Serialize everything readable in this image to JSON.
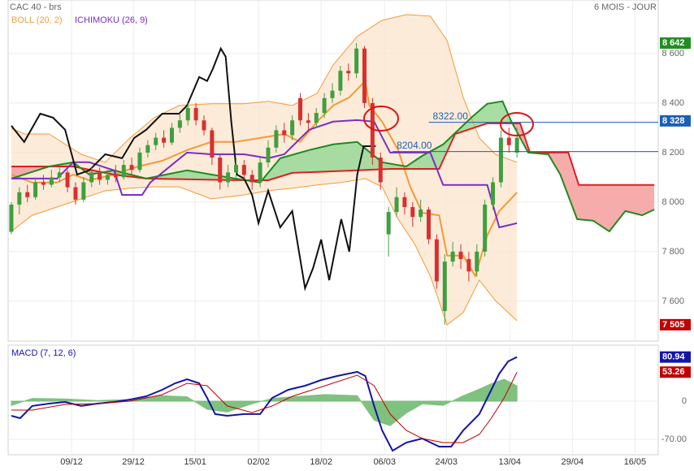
{
  "chart_data": [
    {
      "type": "candlestick",
      "title": "CAC 40 - brs",
      "subtitle": "6 MOIS - JOUR",
      "xlim": [
        -0.4,
        80.6
      ],
      "ylim": [
        7439,
        8816
      ],
      "grid": true,
      "xticks": [
        {
          "value": 7.5,
          "label": "09/12"
        },
        {
          "value": 15.2,
          "label": "29/12"
        },
        {
          "value": 22.9,
          "label": "15/01"
        },
        {
          "value": 30.8,
          "label": "02/02"
        },
        {
          "value": 38.6,
          "label": "18/02"
        },
        {
          "value": 46.5,
          "label": "06/03"
        },
        {
          "value": 54.2,
          "label": "24/03"
        },
        {
          "value": 62.1,
          "label": "13/04"
        },
        {
          "value": 69.9,
          "label": "29/04"
        },
        {
          "value": 77.7,
          "label": "16/05"
        }
      ],
      "yticks": [
        {
          "value": 7600,
          "label": "7 600"
        },
        {
          "value": 7800,
          "label": "7 800"
        },
        {
          "value": 8000,
          "label": "8 000"
        },
        {
          "value": 8200,
          "label": "8 200"
        },
        {
          "value": 8400,
          "label": "8 400"
        },
        {
          "value": 8600,
          "label": "8 600"
        }
      ],
      "up_color": "#3f9f3f",
      "down_color": "#d83030",
      "open": [
        7880,
        7990,
        8040,
        8020,
        8080,
        8070,
        8100,
        8120,
        8060,
        8010,
        8080,
        8120,
        8090,
        8110,
        8100,
        8150,
        8130,
        8200,
        8230,
        8260,
        8240,
        8300,
        8330,
        8380,
        8330,
        8290,
        8180,
        8080,
        8120,
        8150,
        8110,
        8080,
        8160,
        8220,
        8290,
        8270,
        8420,
        8330,
        8320,
        8360,
        8420,
        8450,
        8530,
        8520,
        8620,
        8400,
        8180,
        7870,
        7960,
        8020,
        7980,
        7940,
        7970,
        7850,
        7560,
        7760,
        7800,
        7770,
        7720,
        7800,
        7990,
        8080,
        8260,
        8200
      ],
      "high": [
        8000,
        8060,
        8070,
        8100,
        8110,
        8130,
        8140,
        8130,
        8080,
        8100,
        8140,
        8140,
        8130,
        8150,
        8170,
        8180,
        8220,
        8250,
        8280,
        8290,
        8320,
        8360,
        8400,
        8400,
        8350,
        8300,
        8190,
        8150,
        8180,
        8170,
        8130,
        8180,
        8250,
        8310,
        8320,
        8350,
        8440,
        8360,
        8380,
        8440,
        8480,
        8550,
        8560,
        8642,
        8630,
        8420,
        8200,
        7980,
        8060,
        8040,
        8000,
        8010,
        7980,
        7870,
        7790,
        7840,
        7830,
        7800,
        7830,
        8010,
        8100,
        8290,
        8300,
        8300
      ],
      "low": [
        7870,
        7950,
        8000,
        8010,
        8050,
        8060,
        8080,
        8040,
        7990,
        8000,
        8060,
        8070,
        8070,
        8080,
        8090,
        8110,
        8120,
        8180,
        8210,
        8220,
        8230,
        8280,
        8310,
        8310,
        8270,
        8150,
        8050,
        8060,
        8100,
        8090,
        8050,
        8060,
        8140,
        8200,
        8240,
        8250,
        8310,
        8290,
        8300,
        8340,
        8400,
        8430,
        8490,
        8500,
        8380,
        8150,
        8050,
        7780,
        7940,
        7950,
        7900,
        7920,
        7830,
        7650,
        7505,
        7740,
        7730,
        7680,
        7700,
        7780,
        7970,
        8060,
        8200,
        8180
      ],
      "close": [
        7990,
        8040,
        8020,
        8080,
        8070,
        8100,
        8120,
        8060,
        8010,
        8080,
        8120,
        8090,
        8110,
        8100,
        8150,
        8130,
        8200,
        8230,
        8260,
        8240,
        8300,
        8330,
        8380,
        8330,
        8290,
        8180,
        8080,
        8120,
        8150,
        8110,
        8080,
        8160,
        8220,
        8290,
        8270,
        8330,
        8330,
        8320,
        8360,
        8420,
        8450,
        8530,
        8520,
        8620,
        8400,
        8180,
        8080,
        7960,
        8020,
        7980,
        7940,
        7970,
        7850,
        7680,
        7760,
        7800,
        7770,
        7720,
        7800,
        7990,
        8080,
        8260,
        8230,
        8260
      ],
      "indicators": [
        {
          "name": "BOLL (20, 2)",
          "color": "#f0a040"
        },
        {
          "name": "ICHIMOKU (26, 9)",
          "color": "#7a2fbf"
        }
      ],
      "bollinger": {
        "color": "#f39a35",
        "fill": "#fde6cf",
        "upper": {
          "x": [
            0,
            1.6,
            4.7,
            8.7,
            11.7,
            14.8,
            17.8,
            20.9,
            24.9,
            29.0,
            32.0,
            35.0,
            38.1,
            40.1,
            43.1,
            46.2,
            49.2,
            52.2,
            54.3,
            56.3,
            58.3,
            60.3,
            63.0
          ],
          "values": [
            8298,
            8275,
            8275,
            8193,
            8161,
            8259,
            8341,
            8390,
            8397,
            8397,
            8407,
            8390,
            8439,
            8554,
            8669,
            8734,
            8757,
            8751,
            8652,
            8423,
            8259,
            8193,
            8161
          ]
        },
        "middle": {
          "x": [
            0,
            2.6,
            5.7,
            7.7,
            9.7,
            12.8,
            15.8,
            18.8,
            21.9,
            24.9,
            27.9,
            31.0,
            34.0,
            36.0,
            38.1,
            40.1,
            42.1,
            44.1,
            44.6,
            46.2,
            48.2,
            49.7,
            51.2,
            53.3,
            54.3,
            56.3,
            57.8,
            59.3,
            60.8,
            63.0
          ],
          "values": [
            8111,
            8079,
            8079,
            8111,
            8088,
            8111,
            8144,
            8167,
            8210,
            8243,
            8243,
            8259,
            8275,
            8243,
            8325,
            8390,
            8423,
            8489,
            8390,
            8325,
            8210,
            8062,
            7957,
            7947,
            7784,
            7784,
            7702,
            7866,
            7964,
            8039
          ]
        },
        "lower": {
          "x": [
            0,
            2.6,
            5.7,
            8.7,
            11.7,
            14.8,
            17.8,
            20.9,
            24.9,
            29.0,
            32.0,
            35.0,
            38.1,
            41.1,
            44.1,
            46.2,
            48.2,
            50.2,
            52.2,
            54.3,
            56.3,
            58.3,
            60.3,
            63.0
          ],
          "values": [
            7882,
            7947,
            7980,
            8013,
            8046,
            8056,
            8062,
            8062,
            8013,
            8029,
            8046,
            8056,
            8069,
            8079,
            8095,
            8062,
            7931,
            7833,
            7702,
            7505,
            7554,
            7685,
            7603,
            7521
          ]
        }
      },
      "ichimoku": {
        "cloud_up": "#9fd99a",
        "cloud_down": "#f6a3a3",
        "kijun": {
          "color": "#7a2fbf",
          "x": [
            0,
            2.6,
            5.7,
            7.7,
            9.7,
            12.8,
            13.8,
            16.3,
            17.3,
            20.4,
            21.9,
            24.9,
            29.0,
            32.0,
            34.0,
            37.1,
            40.1,
            43.1,
            45.2,
            47.2,
            52.2,
            53.8,
            59.3,
            60.8,
            63.0
          ],
          "values": [
            8095,
            8095,
            8095,
            8161,
            8161,
            8128,
            8029,
            8029,
            8079,
            8161,
            8200,
            8193,
            8193,
            8177,
            8193,
            8292,
            8325,
            8331,
            8325,
            8200,
            8200,
            8069,
            8069,
            7898,
            7915
          ]
        },
        "chikou": {
          "color": "#111111",
          "x": [
            0,
            1.6,
            3.6,
            5.2,
            6.7,
            8.2,
            9.7,
            11.7,
            13.8,
            15.3,
            16.8,
            18.8,
            20.9,
            21.9,
            23.4,
            24.4,
            25.1,
            26.1,
            26.7,
            27.4,
            28.1,
            29.0,
            30.0,
            30.8,
            32.0,
            33.5,
            35.0,
            36.6,
            37.6,
            38.6,
            39.6,
            41.1,
            42.1,
            43.1,
            43.9,
            45.4
          ],
          "values": [
            8308,
            8243,
            8357,
            8341,
            8292,
            8111,
            8128,
            8193,
            8177,
            8259,
            8292,
            8357,
            8357,
            8390,
            8505,
            8489,
            8538,
            8620,
            8587,
            8325,
            8111,
            8095,
            8029,
            7915,
            8046,
            7898,
            7964,
            7652,
            7734,
            7849,
            7685,
            7931,
            7800,
            8111,
            8226,
            8226
          ]
        },
        "senkou_a": {
          "color": "#1e8a1e",
          "x": [
            0,
            4.7,
            7.7,
            9.7,
            12.8,
            16.8,
            21.9,
            27.9,
            31.0,
            33.5,
            37.1,
            40.1,
            43.1,
            46.2,
            49.2,
            51.2,
            53.8,
            57.3,
            59.3,
            61.2,
            62.3,
            64.4,
            66.9,
            68.4,
            70.5,
            72.5,
            74.5,
            76.5,
            78.6,
            80.1
          ],
          "values": [
            8095,
            8144,
            8161,
            8111,
            8128,
            8095,
            8128,
            8095,
            8079,
            8177,
            8210,
            8233,
            8243,
            8161,
            8144,
            8187,
            8233,
            8341,
            8397,
            8407,
            8325,
            8200,
            8193,
            8111,
            7931,
            7925,
            7882,
            7964,
            7947,
            7970
          ]
        },
        "senkou_b": {
          "color": "#dd1f1f",
          "x": [
            0,
            7.7,
            12.8,
            16.8,
            29.0,
            32.0,
            35.0,
            43.1,
            47.2,
            53.3,
            55.3,
            59.3,
            63.4,
            64.6,
            69.4,
            70.7,
            80.1
          ],
          "values": [
            8144,
            8144,
            8111,
            8095,
            8088,
            8088,
            8118,
            8128,
            8134,
            8134,
            8275,
            8318,
            8318,
            8200,
            8200,
            8069,
            8069
          ]
        }
      },
      "annotations": [
        {
          "label": "8322.00",
          "value": 8322,
          "x": 52.0,
          "color": "#1d5fb5"
        },
        {
          "label": "8204.00",
          "value": 8204,
          "x": 47.5,
          "color": "#1d5fb5"
        }
      ],
      "price_labels": [
        {
          "value": 8642,
          "label": "8 642",
          "color": "#1f8f1f"
        },
        {
          "value": 8328,
          "label": "8 328",
          "color": "#1d5fb5"
        },
        {
          "value": 7505,
          "label": "7 505",
          "color": "#c00000"
        }
      ]
    },
    {
      "type": "line",
      "title": "MACD (7, 12, 6)",
      "xlim": [
        -0.4,
        80.6
      ],
      "ylim": [
        -98.4,
        102.8
      ],
      "grid": true,
      "yticks": [
        0,
        {
          "value": -70,
          "label": "-70.00"
        }
      ],
      "series": [
        {
          "color": "#1414a8",
          "style": "line",
          "end_box": true,
          "x": [
            0,
            1.1,
            2.6,
            4.7,
            6.7,
            8.7,
            10.7,
            12.8,
            14.8,
            16.8,
            18.8,
            20.4,
            21.9,
            23.4,
            24.4,
            25.4,
            26.9,
            29.0,
            31.0,
            32.5,
            34.5,
            36.6,
            38.6,
            40.6,
            43.1,
            44.1,
            45.2,
            46.2,
            47.5,
            49.2,
            51.2,
            53.3,
            54.8,
            56.3,
            58.3,
            59.8,
            60.8,
            61.9,
            63.0
          ],
          "values": [
            -26.8,
            -31.3,
            -8.9,
            -4.5,
            -1.5,
            -8.9,
            -4.5,
            -1.5,
            3.0,
            8.9,
            20.9,
            32.8,
            40.2,
            32.8,
            6.0,
            -23.8,
            -26.8,
            -23.8,
            -23.8,
            6.0,
            20.9,
            28.3,
            38.7,
            46.2,
            53.7,
            46.2,
            -8.9,
            -53.7,
            -90.9,
            -76.0,
            -68.6,
            -83.5,
            -83.5,
            -53.7,
            -23.8,
            20.9,
            50.7,
            73.0,
            80.94
          ]
        },
        {
          "color": "#c00000",
          "style": "line",
          "end_box": true,
          "x": [
            0,
            2.6,
            6.7,
            10.7,
            14.8,
            18.8,
            21.9,
            24.4,
            26.9,
            30.0,
            32.5,
            35.0,
            39.1,
            43.1,
            45.2,
            47.2,
            49.2,
            51.2,
            53.8,
            56.3,
            58.3,
            59.8,
            61.4,
            63.0
          ],
          "values": [
            -16.4,
            -16.4,
            -6.0,
            -4.5,
            0,
            11.9,
            32.8,
            28.3,
            -8.9,
            -20.9,
            -8.9,
            8.9,
            28.3,
            47.7,
            28.3,
            -23.8,
            -53.7,
            -68.6,
            -76.0,
            -76.0,
            -61.1,
            -31.3,
            6.0,
            53.26
          ]
        },
        {
          "color": "#4aa84a",
          "style": "area",
          "end_box": false,
          "x": [
            0,
            2.6,
            6.7,
            10.7,
            14.8,
            18.8,
            21.9,
            24.4,
            26.9,
            30.0,
            32.5,
            35.0,
            39.1,
            43.1,
            45.2,
            47.2,
            49.2,
            51.2,
            53.8,
            56.3,
            58.3,
            59.8,
            61.4,
            63.0
          ],
          "values": [
            -8,
            5,
            4,
            1,
            3,
            10,
            8,
            -15,
            -20,
            -5,
            5,
            8,
            12,
            10,
            -35,
            -45,
            -22,
            -5,
            -8,
            10,
            22,
            32,
            40,
            28
          ]
        }
      ]
    }
  ]
}
